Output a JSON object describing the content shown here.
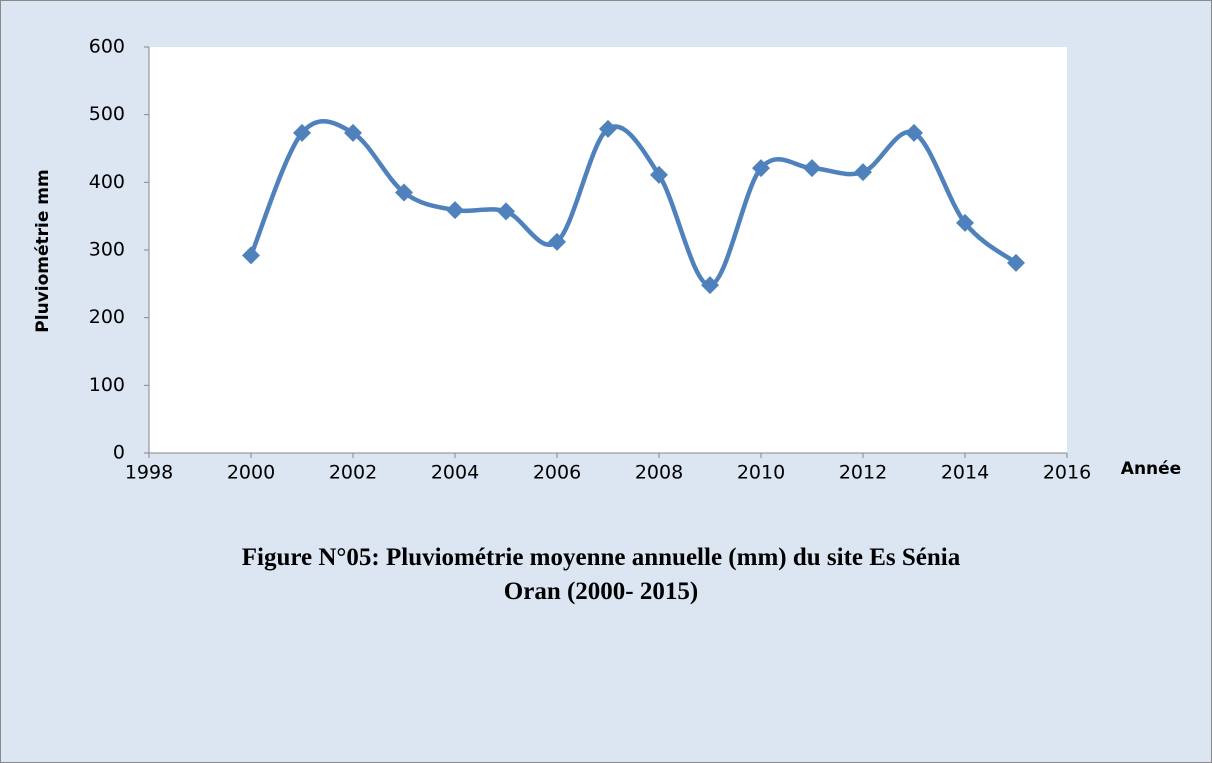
{
  "chart_data": {
    "type": "line",
    "x": [
      2000,
      2001,
      2002,
      2003,
      2004,
      2005,
      2006,
      2007,
      2008,
      2009,
      2010,
      2011,
      2012,
      2013,
      2014,
      2015
    ],
    "series": [
      {
        "color": "#4f81bd",
        "values": [
          292,
          473,
          473,
          385,
          359,
          357,
          312,
          479,
          411,
          248,
          421,
          421,
          415,
          473,
          340,
          281
        ]
      }
    ],
    "xlim": [
      1998,
      2016
    ],
    "xticks": [
      1998,
      2000,
      2002,
      2004,
      2006,
      2008,
      2010,
      2012,
      2014,
      2016
    ],
    "ylim": [
      0,
      600
    ],
    "yticks": [
      0,
      100,
      200,
      300,
      400,
      500,
      600
    ],
    "xlabel": "Année",
    "ylabel": "Pluviométrie mm",
    "smooth": true,
    "caption": "Figure N°05: Pluviométrie moyenne annuelle (mm) du site Es Sénia Oran (2000- 2015)"
  }
}
